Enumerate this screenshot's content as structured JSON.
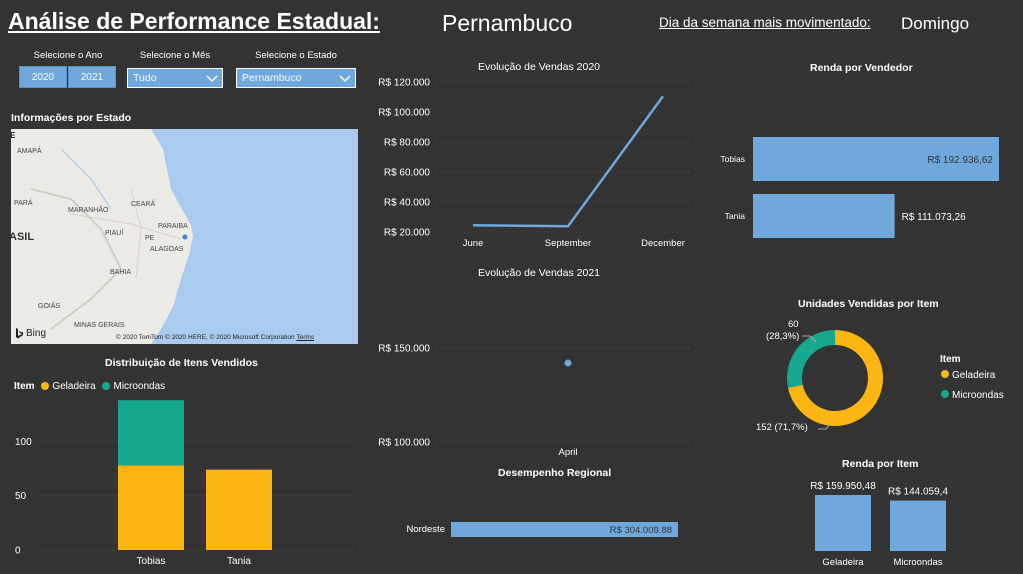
{
  "header": {
    "title": "Análise de Performance Estadual:",
    "state": "Pernambuco",
    "busiest_day_label": "Dia da semana mais movimentado:",
    "busiest_day_value": "Domingo"
  },
  "filters": {
    "year_label": "Selecione o Ano",
    "years": [
      "2020",
      "2021"
    ],
    "month_label": "Selecione o Mês",
    "month_value": "Tudo",
    "state_label": "Selecione o Estado",
    "state_value": "Pernambuco"
  },
  "map": {
    "title": "Informações por Estado",
    "labels": [
      "AMAPÁ",
      "PARÁ",
      "MARANHÃO",
      "CEARÁ",
      "PARAIBA",
      "PIAUÍ",
      "PE",
      "ALAGOAS",
      "BAHIA",
      "GOIÁS",
      "MINAS GERAIS",
      "ASIL"
    ],
    "bing": "Bing",
    "attribution": "© 2020 TomTom © 2020 HERE, © 2020 Microsoft Corporation",
    "terms": "Terms"
  },
  "colors": {
    "background": "#333333",
    "bar_blue": "#6fa8dc",
    "geladeira": "#fbb614",
    "microondas": "#16a88e"
  },
  "chart_data": [
    {
      "id": "sales2020",
      "type": "line",
      "title": "Evolução de Vendas 2020",
      "categories": [
        "June",
        "September",
        "December"
      ],
      "values": [
        24500,
        23800,
        110500
      ],
      "ylim": [
        20000,
        120000
      ],
      "yticks": [
        "R$ 20.000",
        "R$ 40.000",
        "R$ 60.000",
        "R$ 80.000",
        "R$ 100.000",
        "R$ 120.000"
      ]
    },
    {
      "id": "sales2021",
      "type": "scatter",
      "title": "Evolução de Vendas 2021",
      "categories": [
        "April"
      ],
      "values": [
        142000
      ],
      "ylim": [
        100000,
        150000
      ],
      "yticks": [
        "R$ 100.000",
        "R$ 150.000"
      ]
    },
    {
      "id": "regional",
      "type": "bar",
      "orientation": "horizontal",
      "title": "Desempenho Regional",
      "categories": [
        "Nordeste"
      ],
      "values": [
        304009.88
      ],
      "data_labels": [
        "R$ 304.009.88"
      ]
    },
    {
      "id": "seller",
      "type": "bar",
      "orientation": "horizontal",
      "title": "Renda por Vendedor",
      "categories": [
        "Tobias",
        "Tania"
      ],
      "values": [
        192936.62,
        111073.26
      ],
      "data_labels": [
        "R$ 192.936,62",
        "R$ 111.073,26"
      ]
    },
    {
      "id": "units",
      "type": "pie",
      "title": "Unidades Vendidas por Item",
      "legend_title": "Item",
      "categories": [
        "Geladeira",
        "Microondas"
      ],
      "values": [
        152,
        60
      ],
      "data_labels": [
        "152 (71,7%)",
        "60 (28,3%)"
      ]
    },
    {
      "id": "itemrev",
      "type": "bar",
      "title": "Renda por Item",
      "categories": [
        "Geladeira",
        "Microondas"
      ],
      "values": [
        159950.48,
        144059.4
      ],
      "data_labels": [
        "R$ 159.950,48",
        "R$ 144.059,4"
      ]
    },
    {
      "id": "distribution",
      "type": "bar",
      "stacked": true,
      "title": "Distribuição de Itens Vendidos",
      "legend_title": "Item",
      "categories": [
        "Tobias",
        "Tania"
      ],
      "series": [
        {
          "name": "Geladeira",
          "values": [
            78,
            74
          ]
        },
        {
          "name": "Microondas",
          "values": [
            60,
            0
          ]
        }
      ],
      "ylim": [
        0,
        140
      ],
      "yticks": [
        "0",
        "50",
        "100"
      ]
    }
  ]
}
